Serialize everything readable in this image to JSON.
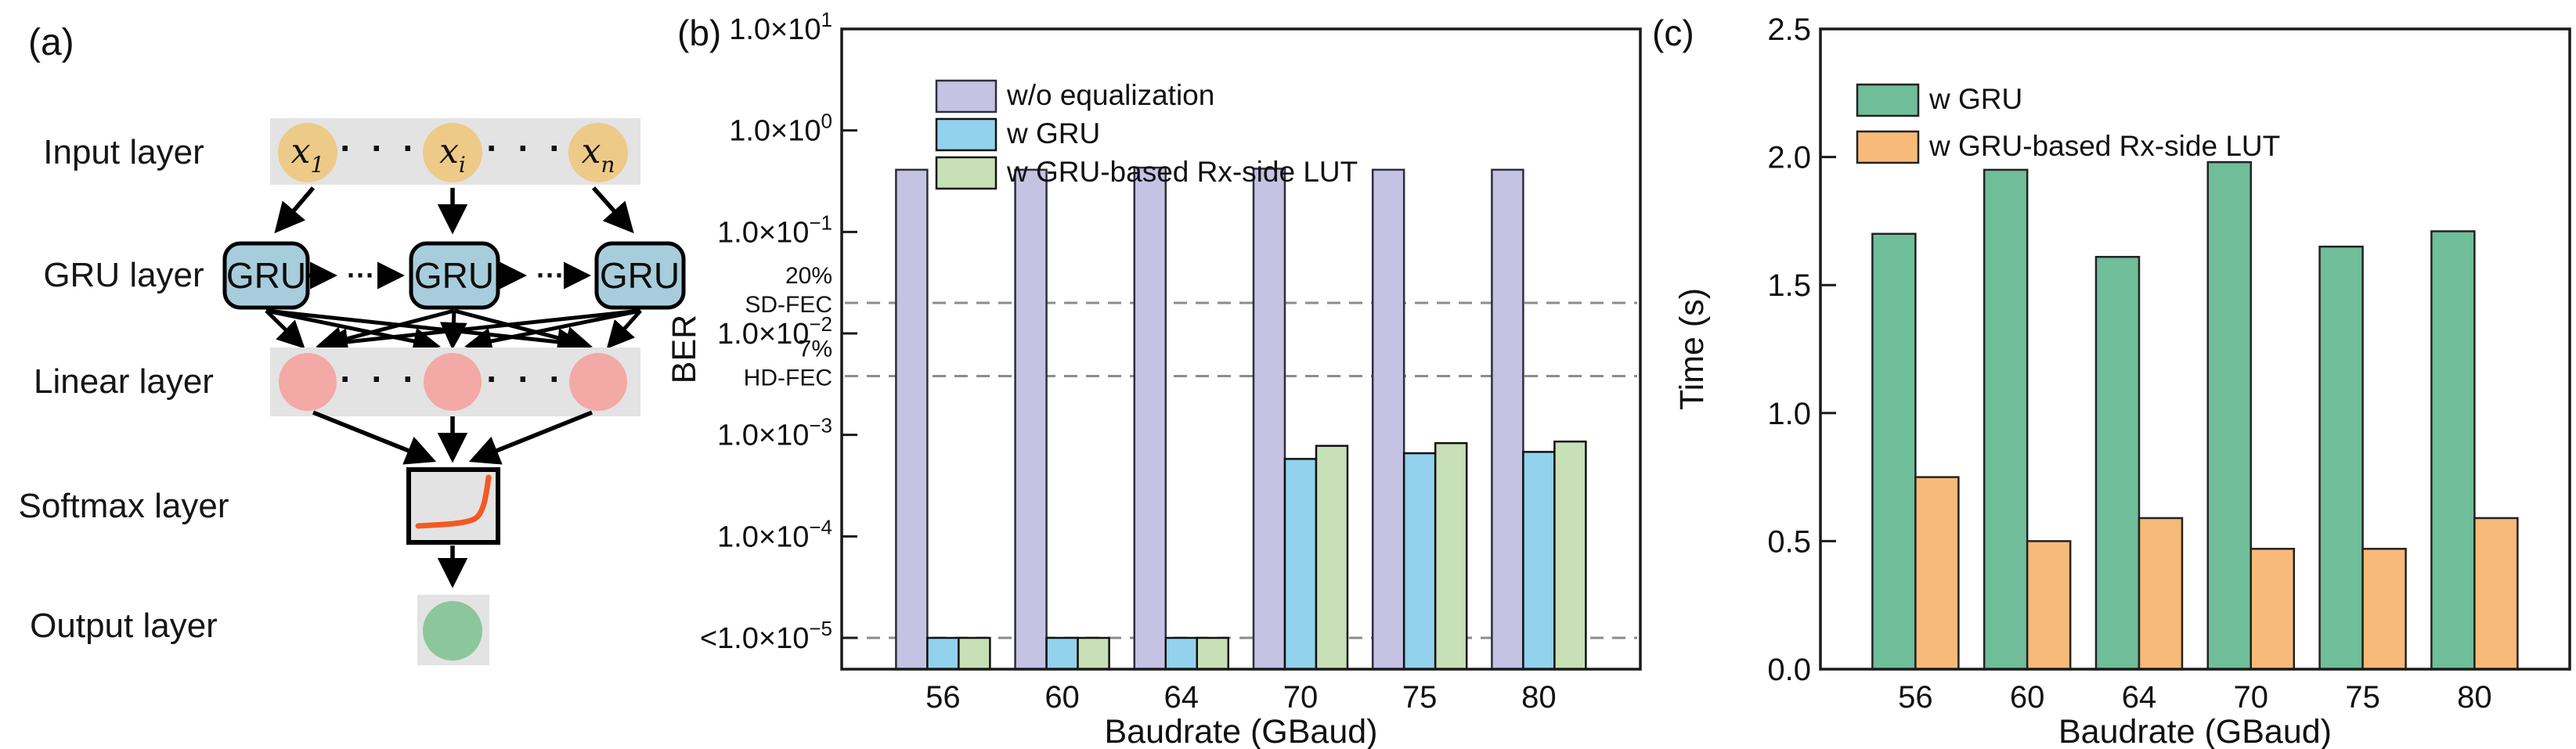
{
  "figure": {
    "background": "#ffffff",
    "panel_a": {
      "label": "(a)",
      "layer_labels": [
        "Input layer",
        "GRU layer",
        "Linear layer",
        "Softmax layer",
        "Output layer"
      ],
      "input_nodes": [
        {
          "base": "x",
          "sub": "1"
        },
        {
          "base": "x",
          "sub": "i"
        },
        {
          "base": "x",
          "sub": "n"
        }
      ],
      "gru_box_label": "GRU",
      "row_ellipsis": "· · ·",
      "chain_ellipsis": "···",
      "colors": {
        "band": "#e3e3e3",
        "input_node": "#edca87",
        "gru_box": "#a7cddc",
        "linear_node": "#f3a9a6",
        "output_node": "#8bc79a",
        "softmax_curve": "#f15a24",
        "arrow": "#000000"
      }
    }
  },
  "chart_data": [
    {
      "id": "b",
      "panel_label": "(b)",
      "type": "bar",
      "title": "",
      "xlabel": "Baudrate (GBaud)",
      "ylabel": "BER",
      "yscale": "log",
      "ylim": [
        5e-06,
        10
      ],
      "grid": false,
      "legend_position": "upper left",
      "categories": [
        "56",
        "60",
        "64",
        "70",
        "75",
        "80"
      ],
      "series": [
        {
          "name": "w/o equalization",
          "color": "#c5c2e3",
          "edge": "#2e2e3e",
          "values": [
            0.41,
            0.41,
            0.43,
            0.42,
            0.41,
            0.41
          ]
        },
        {
          "name": "w GRU",
          "color": "#92d2ec",
          "edge": "#111111",
          "values": [
            1e-05,
            1e-05,
            1e-05,
            0.00058,
            0.00066,
            0.00068
          ]
        },
        {
          "name": "w GRU-based Rx-side LUT",
          "color": "#c8e0b6",
          "edge": "#111111",
          "values": [
            1e-05,
            1e-05,
            1e-05,
            0.00078,
            0.00083,
            0.00086
          ]
        }
      ],
      "below_floor_note": "bars shown at the dashed 1.0×10⁻⁵ line mean BER <1.0×10⁻⁵",
      "yticks": [
        {
          "value": 10,
          "prefix": "",
          "mantissa": "1.0×10",
          "exponent": "1",
          "label": "1.0×10¹"
        },
        {
          "value": 1,
          "prefix": "",
          "mantissa": "1.0×10",
          "exponent": "0",
          "label": "1.0×10⁰"
        },
        {
          "value": 0.1,
          "prefix": "",
          "mantissa": "1.0×10",
          "exponent": "−1",
          "label": "1.0×10⁻¹"
        },
        {
          "value": 0.01,
          "prefix": "",
          "mantissa": "1.0×10",
          "exponent": "−2",
          "label": "1.0×10⁻²"
        },
        {
          "value": 0.001,
          "prefix": "",
          "mantissa": "1.0×10",
          "exponent": "−3",
          "label": "1.0×10⁻³"
        },
        {
          "value": 0.0001,
          "prefix": "",
          "mantissa": "1.0×10",
          "exponent": "−4",
          "label": "1.0×10⁻⁴"
        },
        {
          "value": 1e-05,
          "prefix": "<",
          "mantissa": "1.0×10",
          "exponent": "−5",
          "label": "<1.0×10⁻⁵"
        }
      ],
      "thresholds": [
        {
          "value": 0.02,
          "label_lines": [
            "20%",
            "SD-FEC"
          ]
        },
        {
          "value": 0.0038,
          "label_lines": [
            "7%",
            "HD-FEC"
          ]
        },
        {
          "value": 1e-05,
          "label_lines": []
        }
      ],
      "threshold_color": "#8c8c8c",
      "threshold_label_color": "#8a8a8a"
    },
    {
      "id": "c",
      "panel_label": "(c)",
      "type": "bar",
      "title": "",
      "xlabel": "Baudrate (GBaud)",
      "ylabel": "Time (s)",
      "yscale": "linear",
      "ylim": [
        0,
        2.5
      ],
      "grid": false,
      "legend_position": "upper left",
      "categories": [
        "56",
        "60",
        "64",
        "70",
        "75",
        "80"
      ],
      "series": [
        {
          "name": "w GRU",
          "color": "#6fbe99",
          "edge": "#222222",
          "values": [
            1.7,
            1.95,
            1.61,
            1.98,
            1.65,
            1.71
          ]
        },
        {
          "name": "w GRU-based Rx-side LUT",
          "color": "#f8ba79",
          "edge": "#222222",
          "values": [
            0.75,
            0.5,
            0.59,
            0.47,
            0.47,
            0.59
          ]
        }
      ],
      "yticks": [
        {
          "value": 0.0,
          "label": "0.0"
        },
        {
          "value": 0.5,
          "label": "0.5"
        },
        {
          "value": 1.0,
          "label": "1.0"
        },
        {
          "value": 1.5,
          "label": "1.5"
        },
        {
          "value": 2.0,
          "label": "2.0"
        },
        {
          "value": 2.5,
          "label": "2.5"
        }
      ]
    }
  ]
}
